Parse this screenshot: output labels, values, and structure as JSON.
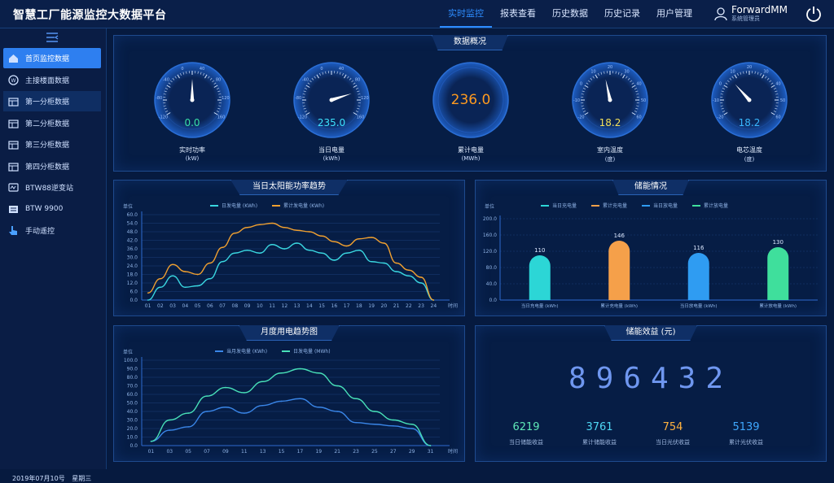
{
  "header": {
    "title": "智慧工厂能源监控大数据平台",
    "nav": [
      "实时监控",
      "报表查看",
      "历史数据",
      "历史记录",
      "用户管理"
    ],
    "active_nav": 0,
    "user_name": "ForwardMM",
    "user_role": "系统管理员"
  },
  "sidebar": {
    "items": [
      {
        "label": "首页监控数据",
        "icon": "home-icon"
      },
      {
        "label": "主接楼面数据",
        "icon": "meter-icon"
      },
      {
        "label": "第一分柜数据",
        "icon": "cabinet-icon"
      },
      {
        "label": "第二分柜数据",
        "icon": "cabinet-icon"
      },
      {
        "label": "第三分柜数据",
        "icon": "cabinet-icon"
      },
      {
        "label": "第四分柜数据",
        "icon": "cabinet-icon"
      },
      {
        "label": "BTW88逆变站",
        "icon": "inverter-icon"
      },
      {
        "label": "BTW 9900",
        "icon": "device-icon"
      },
      {
        "label": "手动遥控",
        "icon": "hand-pointer-icon"
      }
    ],
    "active_index": 0,
    "highlight_index": 2,
    "date": "2019年07月10号",
    "weekday": "星期三"
  },
  "overview": {
    "title": "数据概况",
    "gauges": [
      {
        "value": "0.0",
        "label": "实时功率",
        "unit": "(kW)",
        "needle": 0,
        "color": "#38e0a6",
        "ticks": [
          "-120",
          "-80",
          "-40",
          "0",
          "40",
          "80",
          "120",
          "160"
        ]
      },
      {
        "value": "235.0",
        "label": "当日电量",
        "unit": "(kWh)",
        "needle": 0.6,
        "color": "#3de3ff",
        "ticks": [
          "-120",
          "-80",
          "-40",
          "0",
          "40",
          "80",
          "120",
          "160"
        ]
      },
      {
        "value": "236.0",
        "label": "累计电量",
        "unit": "(MWh)",
        "needle": null,
        "color": "#ff9a1f",
        "ticks": []
      },
      {
        "value": "18.2",
        "label": "室内温度",
        "unit": "(度)",
        "needle": -0.1,
        "color": "#f3e05a",
        "ticks": [
          "-20",
          "-10",
          "0",
          "10",
          "20",
          "30",
          "40",
          "50",
          "60"
        ]
      },
      {
        "value": "18.2",
        "label": "电芯温度",
        "unit": "(度)",
        "needle": -0.35,
        "color": "#39b8ff",
        "ticks": [
          "-20",
          "-10",
          "0",
          "10",
          "20",
          "30",
          "40",
          "50",
          "60"
        ]
      }
    ]
  },
  "solar": {
    "title": "当日太阳能功率趋势",
    "unit": "单位",
    "x_end_label": "时间"
  },
  "storage": {
    "title": "储能情况",
    "unit": "单位"
  },
  "monthly": {
    "title": "月度用电趋势图",
    "unit": "单位",
    "x_end_label": "时间"
  },
  "revenue": {
    "title": "储能效益 (元)",
    "total": "896432",
    "kpis": [
      {
        "value": "6219",
        "label": "当日储能收益",
        "color": "#5fe8b8"
      },
      {
        "value": "3761",
        "label": "累计储能收益",
        "color": "#4fd8f5"
      },
      {
        "value": "754",
        "label": "当日光伏收益",
        "color": "#ffb23f"
      },
      {
        "value": "5139",
        "label": "累计光伏收益",
        "color": "#3fa8ff"
      }
    ]
  },
  "chart_data": [
    {
      "type": "line",
      "title": "当日太阳能功率趋势",
      "x": [
        "01",
        "02",
        "03",
        "04",
        "05",
        "06",
        "07",
        "08",
        "09",
        "10",
        "11",
        "12",
        "13",
        "14",
        "15",
        "16",
        "17",
        "18",
        "19",
        "20",
        "21",
        "22",
        "23",
        "24"
      ],
      "y_ticks": [
        "0.0",
        "6.0",
        "12.0",
        "18.0",
        "24.0",
        "30.0",
        "36.0",
        "42.0",
        "48.0",
        "54.0",
        "60.0"
      ],
      "ylim": [
        0,
        60
      ],
      "series": [
        {
          "name": "日发电量 (KWh)",
          "color": "#3ad6e0",
          "values": [
            0,
            9,
            17,
            9,
            10,
            15,
            27,
            33,
            35,
            33,
            39,
            36,
            40,
            35,
            33,
            28,
            33,
            35,
            27,
            26,
            20,
            17,
            12,
            0
          ]
        },
        {
          "name": "累计发电量 (KWh)",
          "color": "#f0a030",
          "values": [
            5,
            15,
            25,
            20,
            18,
            26,
            37,
            47,
            51,
            53,
            54,
            51,
            49,
            48,
            45,
            41,
            38,
            43,
            44,
            40,
            26,
            21,
            16,
            0
          ]
        }
      ],
      "legend": "top-center",
      "grid": true
    },
    {
      "type": "bar",
      "title": "储能情况",
      "categories": [
        "当日充电量 (kWh)",
        "累计充电量 (kWh)",
        "当日放电量 (kWh)",
        "累计放电量 (kWh)"
      ],
      "values": [
        110,
        146,
        116,
        130
      ],
      "colors": [
        "#2cd6d6",
        "#f5a04a",
        "#2f9cf2",
        "#3fdf9c"
      ],
      "legend_names": [
        "当日充电量",
        "累计充电量",
        "当日放电量",
        "累计放电量"
      ],
      "y_ticks": [
        "0.0",
        "40.0",
        "80.0",
        "120.0",
        "160.0",
        "200.0"
      ],
      "ylim": [
        0,
        200
      ]
    },
    {
      "type": "line",
      "title": "月度用电趋势图",
      "x": [
        "01",
        "03",
        "05",
        "07",
        "09",
        "11",
        "13",
        "15",
        "17",
        "19",
        "21",
        "23",
        "25",
        "27",
        "29",
        "31"
      ],
      "y_ticks": [
        "0.0",
        "10.0",
        "20.0",
        "30.0",
        "40.0",
        "50.0",
        "60.0",
        "70.0",
        "80.0",
        "90.0",
        "100.0"
      ],
      "ylim": [
        0,
        100
      ],
      "series": [
        {
          "name": "当月发电量 (KWh)",
          "color": "#3a86e8",
          "values": [
            5,
            18,
            22,
            40,
            45,
            38,
            47,
            52,
            55,
            45,
            40,
            27,
            25,
            23,
            20,
            0
          ]
        },
        {
          "name": "日发电量 (MWh)",
          "color": "#48e0b8",
          "values": [
            5,
            30,
            38,
            58,
            68,
            62,
            75,
            85,
            90,
            85,
            70,
            55,
            40,
            30,
            25,
            0
          ]
        }
      ],
      "legend": "top-center",
      "grid": true
    }
  ]
}
